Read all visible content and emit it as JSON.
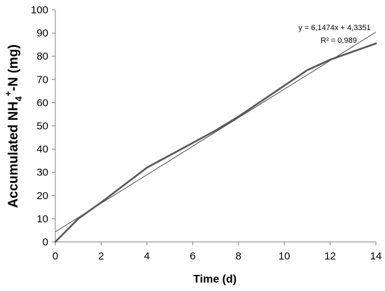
{
  "chart_data": {
    "type": "line",
    "title": "",
    "xlabel": "Time (d)",
    "ylabel": {
      "prefix": "Accumulated NH",
      "subscript": "4",
      "superscript": "+",
      "suffix": "-N (mg)"
    },
    "xlim": [
      0,
      14
    ],
    "ylim": [
      0,
      100
    ],
    "xticks": [
      0,
      2,
      4,
      6,
      8,
      10,
      12,
      14
    ],
    "yticks": [
      0,
      10,
      20,
      30,
      40,
      50,
      60,
      70,
      80,
      90,
      100
    ],
    "grid": false,
    "legend": "none",
    "series": [
      {
        "values_x": [
          0,
          1,
          2,
          4,
          7,
          8,
          11,
          12,
          14
        ],
        "values_y": [
          0,
          10,
          17,
          32,
          48,
          54,
          74,
          78.5,
          85.5
        ],
        "color": "#595959"
      }
    ],
    "trendline": {
      "slope": 6.1474,
      "intercept": 4.3351,
      "color": "#404040",
      "equation": "y = 6,1474x + 4,3351",
      "r_squared": "R² = 0,989"
    }
  }
}
